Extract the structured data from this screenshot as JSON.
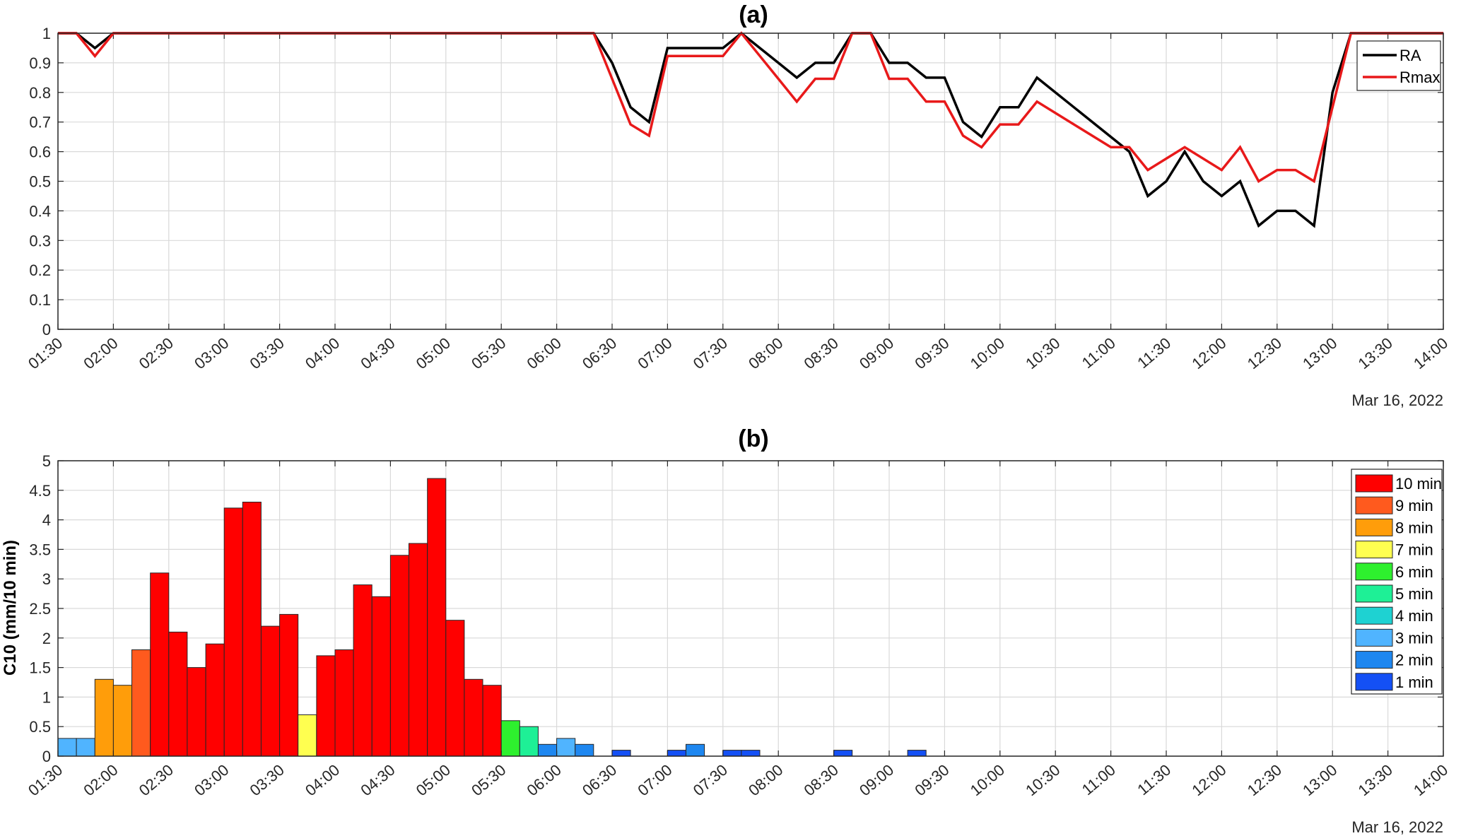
{
  "chart_data": [
    {
      "panel": "a",
      "type": "line",
      "title": "(a)",
      "xlabel": "",
      "ylabel": "",
      "date_label": "Mar 16, 2022",
      "x_tick_labels": [
        "01:30",
        "02:00",
        "02:30",
        "03:00",
        "03:30",
        "04:00",
        "04:30",
        "05:00",
        "05:30",
        "06:00",
        "06:30",
        "07:00",
        "07:30",
        "08:00",
        "08:30",
        "09:00",
        "09:30",
        "10:00",
        "10:30",
        "11:00",
        "11:30",
        "12:00",
        "12:30",
        "13:00",
        "13:30",
        "14:00"
      ],
      "y_tick_labels": [
        "0",
        "0.1",
        "0.2",
        "0.3",
        "0.4",
        "0.5",
        "0.6",
        "0.7",
        "0.8",
        "0.9",
        "1"
      ],
      "xlim": [
        "01:30",
        "14:00"
      ],
      "ylim": [
        0,
        1
      ],
      "grid": true,
      "legend_position": "top-right",
      "series": [
        {
          "name": "RA",
          "color": "#000000",
          "points": [
            [
              "01:30",
              1
            ],
            [
              "01:40",
              1
            ],
            [
              "01:50",
              0.95
            ],
            [
              "02:00",
              1
            ],
            [
              "06:20",
              1
            ],
            [
              "06:30",
              0.9
            ],
            [
              "06:40",
              0.75
            ],
            [
              "06:50",
              0.7
            ],
            [
              "07:00",
              0.95
            ],
            [
              "07:10",
              0.95
            ],
            [
              "07:20",
              0.95
            ],
            [
              "07:30",
              0.95
            ],
            [
              "07:40",
              1
            ],
            [
              "07:50",
              0.95
            ],
            [
              "08:00",
              0.9
            ],
            [
              "08:10",
              0.85
            ],
            [
              "08:20",
              0.9
            ],
            [
              "08:30",
              0.9
            ],
            [
              "08:40",
              1
            ],
            [
              "08:50",
              1
            ],
            [
              "09:00",
              0.9
            ],
            [
              "09:10",
              0.9
            ],
            [
              "09:20",
              0.85
            ],
            [
              "09:30",
              0.85
            ],
            [
              "09:40",
              0.7
            ],
            [
              "09:50",
              0.65
            ],
            [
              "10:00",
              0.75
            ],
            [
              "10:10",
              0.75
            ],
            [
              "10:20",
              0.85
            ],
            [
              "11:10",
              0.6
            ],
            [
              "11:20",
              0.45
            ],
            [
              "11:30",
              0.5
            ],
            [
              "11:40",
              0.6
            ],
            [
              "11:50",
              0.5
            ],
            [
              "12:00",
              0.45
            ],
            [
              "12:10",
              0.5
            ],
            [
              "12:20",
              0.35
            ],
            [
              "12:30",
              0.4
            ],
            [
              "12:40",
              0.4
            ],
            [
              "12:50",
              0.35
            ],
            [
              "13:00",
              0.8
            ],
            [
              "13:10",
              1
            ],
            [
              "14:00",
              1
            ]
          ]
        },
        {
          "name": "Rmax",
          "color": "#e8191a",
          "points": [
            [
              "01:30",
              1
            ],
            [
              "01:40",
              1
            ],
            [
              "01:50",
              0.923
            ],
            [
              "02:00",
              1
            ],
            [
              "06:20",
              1
            ],
            [
              "06:30",
              0.846
            ],
            [
              "06:40",
              0.692
            ],
            [
              "06:50",
              0.654
            ],
            [
              "07:00",
              0.923
            ],
            [
              "07:10",
              0.923
            ],
            [
              "07:20",
              0.923
            ],
            [
              "07:30",
              0.923
            ],
            [
              "07:40",
              1
            ],
            [
              "07:50",
              0.923
            ],
            [
              "08:00",
              0.846
            ],
            [
              "08:10",
              0.769
            ],
            [
              "08:20",
              0.846
            ],
            [
              "08:30",
              0.846
            ],
            [
              "08:40",
              1
            ],
            [
              "08:50",
              1
            ],
            [
              "09:00",
              0.846
            ],
            [
              "09:10",
              0.846
            ],
            [
              "09:20",
              0.769
            ],
            [
              "09:30",
              0.769
            ],
            [
              "09:40",
              0.654
            ],
            [
              "09:50",
              0.615
            ],
            [
              "10:00",
              0.692
            ],
            [
              "10:10",
              0.692
            ],
            [
              "10:20",
              0.769
            ],
            [
              "11:00",
              0.615
            ],
            [
              "11:10",
              0.615
            ],
            [
              "11:20",
              0.538
            ],
            [
              "11:40",
              0.615
            ],
            [
              "12:00",
              0.538
            ],
            [
              "12:10",
              0.615
            ],
            [
              "12:20",
              0.5
            ],
            [
              "12:30",
              0.538
            ],
            [
              "12:40",
              0.538
            ],
            [
              "12:50",
              0.5
            ],
            [
              "13:10",
              1
            ],
            [
              "14:00",
              1
            ]
          ]
        }
      ]
    },
    {
      "panel": "b",
      "type": "bar",
      "title": "(b)",
      "xlabel": "",
      "ylabel": "C10 (mm/10 min)",
      "date_label": "Mar 16, 2022",
      "x_tick_labels": [
        "01:30",
        "02:00",
        "02:30",
        "03:00",
        "03:30",
        "04:00",
        "04:30",
        "05:00",
        "05:30",
        "06:00",
        "06:30",
        "07:00",
        "07:30",
        "08:00",
        "08:30",
        "09:00",
        "09:30",
        "10:00",
        "10:30",
        "11:00",
        "11:30",
        "12:00",
        "12:30",
        "13:00",
        "13:30",
        "14:00"
      ],
      "y_tick_labels": [
        "0",
        "0.5",
        "1",
        "1.5",
        "2",
        "2.5",
        "3",
        "3.5",
        "4",
        "4.5",
        "5"
      ],
      "xlim": [
        "01:30",
        "14:00"
      ],
      "ylim": [
        0,
        5
      ],
      "grid": true,
      "legend_position": "top-right",
      "legend": [
        {
          "label": "10 min",
          "color": "#ff0000"
        },
        {
          "label": "9 min",
          "color": "#ff5a1e"
        },
        {
          "label": "8 min",
          "color": "#ff9d0a"
        },
        {
          "label": "7 min",
          "color": "#ffff50"
        },
        {
          "label": "6 min",
          "color": "#2ef02e"
        },
        {
          "label": "5 min",
          "color": "#1ef096"
        },
        {
          "label": "4 min",
          "color": "#1ed2d2"
        },
        {
          "label": "3 min",
          "color": "#50b4ff"
        },
        {
          "label": "2 min",
          "color": "#1e87f0"
        },
        {
          "label": "1 min",
          "color": "#1450f5"
        }
      ],
      "bars": [
        {
          "start": "01:30",
          "value": 0.3,
          "duration": "3 min"
        },
        {
          "start": "01:40",
          "value": 0.3,
          "duration": "3 min"
        },
        {
          "start": "01:50",
          "value": 1.3,
          "duration": "8 min"
        },
        {
          "start": "02:00",
          "value": 1.2,
          "duration": "8 min"
        },
        {
          "start": "02:10",
          "value": 1.8,
          "duration": "9 min"
        },
        {
          "start": "02:20",
          "value": 3.1,
          "duration": "10 min"
        },
        {
          "start": "02:30",
          "value": 2.1,
          "duration": "10 min"
        },
        {
          "start": "02:40",
          "value": 1.5,
          "duration": "10 min"
        },
        {
          "start": "02:50",
          "value": 1.9,
          "duration": "10 min"
        },
        {
          "start": "03:00",
          "value": 4.2,
          "duration": "10 min"
        },
        {
          "start": "03:10",
          "value": 4.3,
          "duration": "10 min"
        },
        {
          "start": "03:20",
          "value": 2.2,
          "duration": "10 min"
        },
        {
          "start": "03:30",
          "value": 2.4,
          "duration": "10 min"
        },
        {
          "start": "03:40",
          "value": 0.7,
          "duration": "7 min"
        },
        {
          "start": "03:50",
          "value": 1.7,
          "duration": "10 min"
        },
        {
          "start": "04:00",
          "value": 1.8,
          "duration": "10 min"
        },
        {
          "start": "04:10",
          "value": 2.9,
          "duration": "10 min"
        },
        {
          "start": "04:20",
          "value": 2.7,
          "duration": "10 min"
        },
        {
          "start": "04:30",
          "value": 3.4,
          "duration": "10 min"
        },
        {
          "start": "04:40",
          "value": 3.6,
          "duration": "10 min"
        },
        {
          "start": "04:50",
          "value": 4.7,
          "duration": "10 min"
        },
        {
          "start": "05:00",
          "value": 2.3,
          "duration": "10 min"
        },
        {
          "start": "05:10",
          "value": 1.3,
          "duration": "10 min"
        },
        {
          "start": "05:20",
          "value": 1.2,
          "duration": "10 min"
        },
        {
          "start": "05:30",
          "value": 0.6,
          "duration": "6 min"
        },
        {
          "start": "05:40",
          "value": 0.5,
          "duration": "5 min"
        },
        {
          "start": "05:50",
          "value": 0.2,
          "duration": "2 min"
        },
        {
          "start": "06:00",
          "value": 0.3,
          "duration": "3 min"
        },
        {
          "start": "06:10",
          "value": 0.2,
          "duration": "2 min"
        },
        {
          "start": "06:30",
          "value": 0.1,
          "duration": "1 min"
        },
        {
          "start": "07:00",
          "value": 0.1,
          "duration": "1 min"
        },
        {
          "start": "07:10",
          "value": 0.2,
          "duration": "2 min"
        },
        {
          "start": "07:30",
          "value": 0.1,
          "duration": "1 min"
        },
        {
          "start": "07:40",
          "value": 0.1,
          "duration": "1 min"
        },
        {
          "start": "08:30",
          "value": 0.1,
          "duration": "1 min"
        },
        {
          "start": "09:10",
          "value": 0.1,
          "duration": "1 min"
        }
      ]
    }
  ]
}
